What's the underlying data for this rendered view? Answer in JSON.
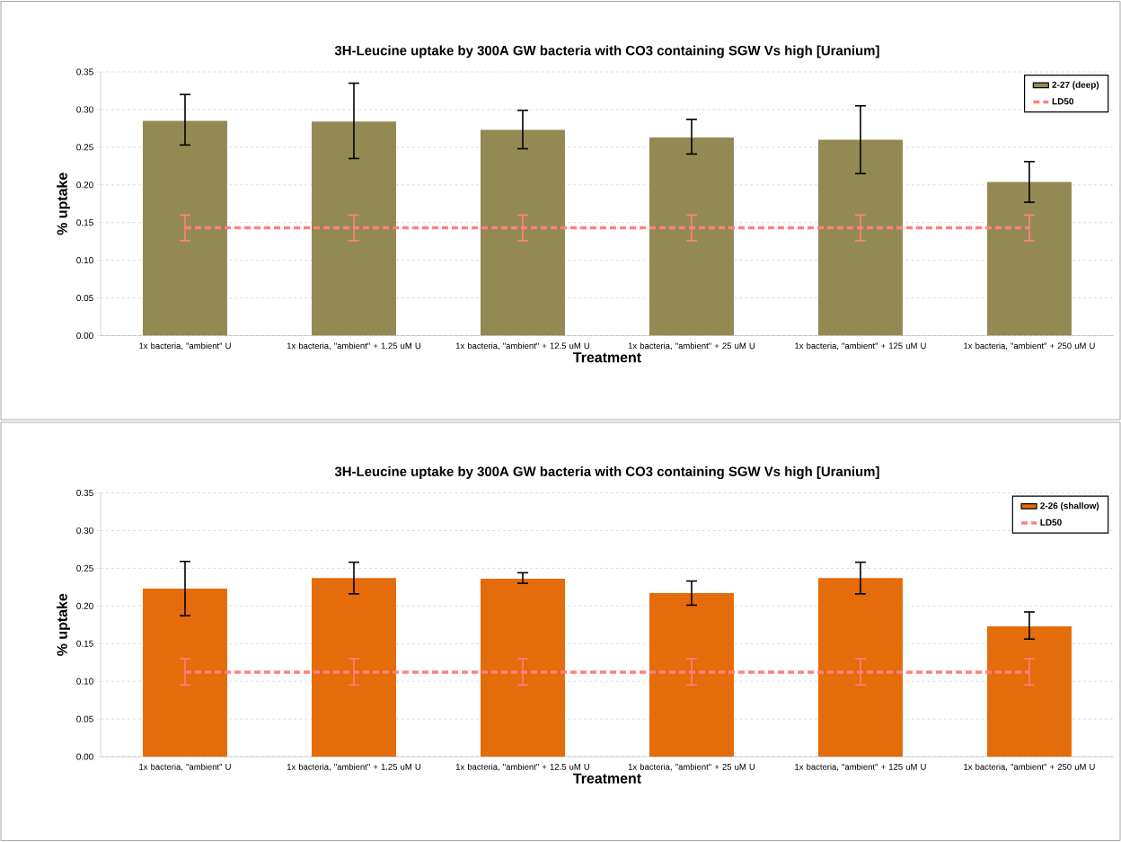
{
  "chart_data": [
    {
      "type": "bar",
      "title": "3H-Leucine uptake by 300A GW bacteria with CO3 containing SGW Vs high [Uranium]",
      "xlabel": "Treatment",
      "ylabel": "% uptake",
      "categories": [
        "1x bacteria, \"ambient\" U",
        "1x bacteria, \"ambient\" + 1.25 uM U",
        "1x bacteria, \"ambient\" + 12.5 uM U",
        "1x bacteria, \"ambient\" + 25 uM U",
        "1x bacteria, \"ambient\" + 125 uM U",
        "1x bacteria, \"ambient\" + 250 uM U"
      ],
      "series": [
        {
          "name": "2-27 (deep)",
          "color": "#938953",
          "values": [
            0.285,
            0.284,
            0.273,
            0.263,
            0.26,
            0.204
          ],
          "errors": [
            [
              0.253,
              0.32
            ],
            [
              0.235,
              0.335
            ],
            [
              0.248,
              0.299
            ],
            [
              0.241,
              0.287
            ],
            [
              0.215,
              0.305
            ],
            [
              0.177,
              0.231
            ]
          ]
        },
        {
          "name": "LD50",
          "type": "line",
          "color": "#ff8080",
          "line_style": "dashed",
          "values": [
            0.143,
            0.143,
            0.143,
            0.143,
            0.143,
            0.143
          ],
          "errors": [
            [
              0.126,
              0.16
            ],
            [
              0.126,
              0.16
            ],
            [
              0.126,
              0.16
            ],
            [
              0.126,
              0.16
            ],
            [
              0.126,
              0.16
            ],
            [
              0.126,
              0.16
            ]
          ]
        }
      ],
      "ylim": [
        0,
        0.35
      ],
      "yticks": [
        {
          "value": 0,
          "label": "0.00"
        },
        {
          "value": 0.05,
          "label": "0.05"
        },
        {
          "value": 0.1,
          "label": "0.10"
        },
        {
          "value": 0.15,
          "label": "0.15"
        },
        {
          "value": 0.2,
          "label": "0.20"
        },
        {
          "value": 0.25,
          "label": "0.25"
        },
        {
          "value": 0.3,
          "label": "0.30"
        },
        {
          "value": 0.35,
          "label": "0.35"
        }
      ],
      "grid": "y",
      "legend": "top right",
      "marker": "none"
    },
    {
      "type": "bar",
      "title": "3H-Leucine uptake by 300A GW bacteria with CO3 containing SGW Vs high [Uranium]",
      "xlabel": "Treatment",
      "ylabel": "% uptake",
      "categories": [
        "1x bacteria, \"ambient\" U",
        "1x bacteria, \"ambient\" + 1.25 uM U",
        "1x bacteria, \"ambient\" + 12.5 uM U",
        "1x bacteria, \"ambient\" + 25 uM U",
        "1x bacteria, \"ambient\" + 125 uM U",
        "1x bacteria, \"ambient\" + 250 uM U"
      ],
      "series": [
        {
          "name": "2-26 (shallow)",
          "color": "#e46c0a",
          "values": [
            0.223,
            0.237,
            0.236,
            0.217,
            0.237,
            0.173
          ],
          "errors": [
            [
              0.187,
              0.259
            ],
            [
              0.216,
              0.258
            ],
            [
              0.23,
              0.244
            ],
            [
              0.201,
              0.233
            ],
            [
              0.216,
              0.258
            ],
            [
              0.156,
              0.192
            ]
          ]
        },
        {
          "name": "LD50",
          "type": "line",
          "color": "#ff8080",
          "line_style": "dashed",
          "values": [
            0.112,
            0.112,
            0.112,
            0.112,
            0.112,
            0.112
          ],
          "errors": [
            [
              0.095,
              0.13
            ],
            [
              0.095,
              0.13
            ],
            [
              0.095,
              0.13
            ],
            [
              0.095,
              0.13
            ],
            [
              0.095,
              0.13
            ],
            [
              0.095,
              0.13
            ]
          ]
        }
      ],
      "ylim": [
        0,
        0.35
      ],
      "yticks": [
        {
          "value": 0,
          "label": "0.00"
        },
        {
          "value": 0.05,
          "label": "0.05"
        },
        {
          "value": 0.1,
          "label": "0.10"
        },
        {
          "value": 0.15,
          "label": "0.15"
        },
        {
          "value": 0.2,
          "label": "0.20"
        },
        {
          "value": 0.25,
          "label": "0.25"
        },
        {
          "value": 0.3,
          "label": "0.30"
        },
        {
          "value": 0.35,
          "label": "0.35"
        }
      ],
      "grid": "y",
      "legend": "top right",
      "marker": "none"
    }
  ]
}
